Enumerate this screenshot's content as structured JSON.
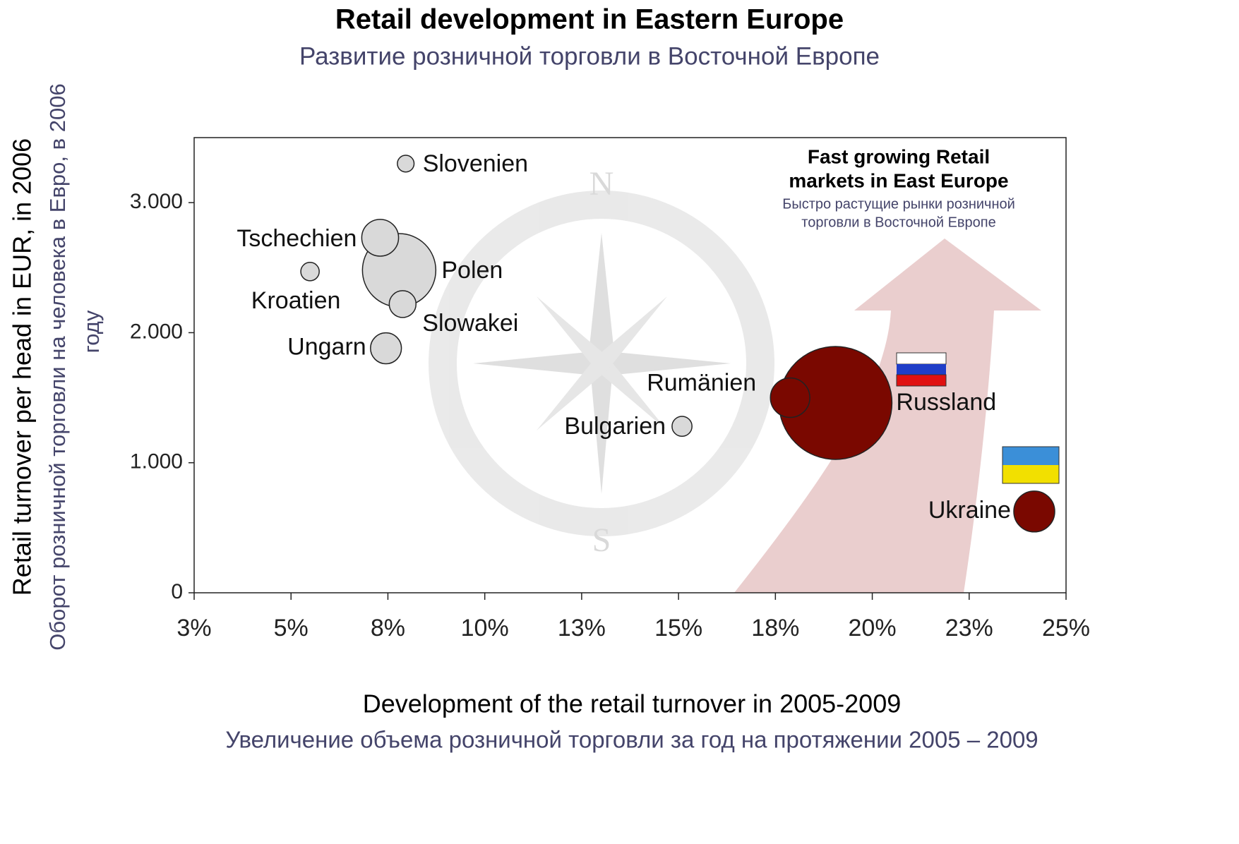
{
  "chart_data": {
    "type": "bubble",
    "title": "Retail development in Eastern Europe",
    "subtitle": "Развитие розничной торговли в Восточной Европе",
    "x_label": "Development of the retail turnover in 2005-2009",
    "x_label_sub": "Увеличение объема розничной торговли за год на протяжении 2005 – 2009",
    "y_label": "Retail turnover per head in EUR, in 2006",
    "y_label_sub": [
      "Оборот розничной торговли на человека в Евро, в 2006",
      "году"
    ],
    "annotation": [
      "Fast growing Retail",
      "markets in East Europe"
    ],
    "annotation_sub": [
      "Быстро растущие рынки розничной",
      "торговли в Восточной Европе"
    ],
    "labels": [
      "Slovenien",
      "Tschechien",
      "Polen",
      "Kroatien",
      "Slowakei",
      "Ungarn",
      "Rumänien",
      "Bulgarien",
      "Russland",
      "Ukraine"
    ],
    "x": [
      7.96,
      7.3,
      7.79,
      5.49,
      7.88,
      7.45,
      17.88,
      15.09,
      19.05,
      24.18
    ],
    "values": [
      3300,
      2730,
      2480,
      2470,
      2220,
      1880,
      1500,
      1280,
      1460,
      625
    ],
    "sizes": [
      14,
      68,
      270,
      17,
      36,
      48,
      78,
      20,
      640,
      84
    ],
    "colors": [
      "#d9d9d9",
      "#d9d9d9",
      "#d9d9d9",
      "#d9d9d9",
      "#d9d9d9",
      "#d9d9d9",
      "#7a0800",
      "#d9d9d9",
      "#7a0800",
      "#7a0800"
    ],
    "xlim": [
      2.5,
      25
    ],
    "xticks": [
      {
        "value": 2.5,
        "label": "3%"
      },
      {
        "value": 5,
        "label": "5%"
      },
      {
        "value": 7.5,
        "label": "8%"
      },
      {
        "value": 10,
        "label": "10%"
      },
      {
        "value": 12.5,
        "label": "13%"
      },
      {
        "value": 15,
        "label": "15%"
      },
      {
        "value": 17.5,
        "label": "18%"
      },
      {
        "value": 20,
        "label": "20%"
      },
      {
        "value": 22.5,
        "label": "23%"
      },
      {
        "value": 25,
        "label": "25%"
      }
    ],
    "ylim": [
      0,
      3500
    ],
    "yticks": [
      0,
      {
        "value": 1000,
        "label": "1.000"
      },
      {
        "value": 2000,
        "label": "2.000"
      },
      {
        "value": 3000,
        "label": "3.000"
      }
    ]
  }
}
